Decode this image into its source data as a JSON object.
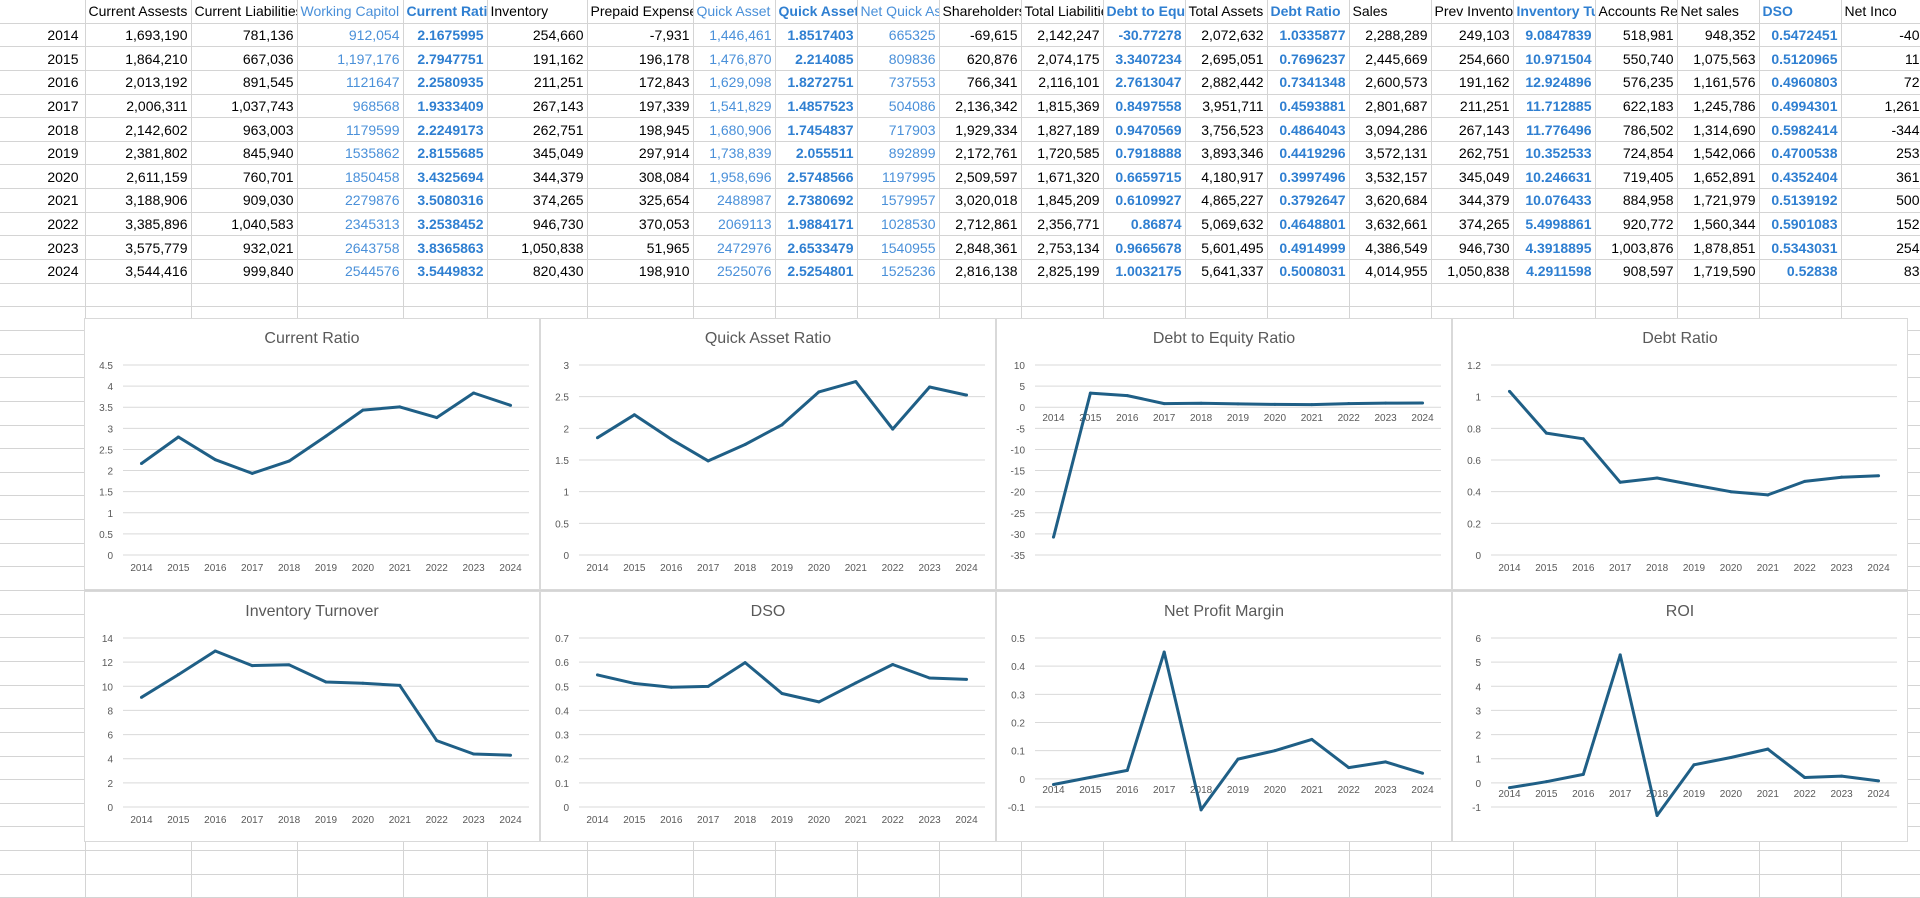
{
  "sheet": {
    "columns": [
      {
        "header": "Current Assests",
        "style": "normal"
      },
      {
        "header": "Current Liabilities",
        "style": "normal"
      },
      {
        "header": "Working Capitol",
        "style": "blue"
      },
      {
        "header": "Current Ratio",
        "style": "bold"
      },
      {
        "header": "Inventory",
        "style": "normal"
      },
      {
        "header": "Prepaid Expenses",
        "style": "normal"
      },
      {
        "header": "Quick Asset",
        "style": "blue"
      },
      {
        "header": "Quick Asset",
        "style": "bold"
      },
      {
        "header": "Net Quick As",
        "style": "blue"
      },
      {
        "header": "Shareholders",
        "style": "normal"
      },
      {
        "header": "Total Liabilitie",
        "style": "normal"
      },
      {
        "header": "Debt to Equi",
        "style": "bold"
      },
      {
        "header": "Total Assets",
        "style": "normal"
      },
      {
        "header": "Debt Ratio",
        "style": "bold"
      },
      {
        "header": "Sales",
        "style": "normal"
      },
      {
        "header": "Prev Inventor",
        "style": "normal"
      },
      {
        "header": "Inventory Tu",
        "style": "bold"
      },
      {
        "header": "Accounts Rec",
        "style": "normal"
      },
      {
        "header": "Net sales",
        "style": "normal"
      },
      {
        "header": "DSO",
        "style": "bold"
      },
      {
        "header": "Net Inco",
        "style": "normal"
      }
    ],
    "rows": [
      {
        "year": "2014",
        "cells": [
          "1,693,190",
          "781,136",
          "912,054",
          "2.1675995",
          "254,660",
          "-7,931",
          "1,446,461",
          "1.8517403",
          "665325",
          "-69,615",
          "2,142,247",
          "-30.77278",
          "2,072,632",
          "1.0335877",
          "2,288,289",
          "249,103",
          "9.0847839",
          "518,981",
          "948,352",
          "0.5472451",
          "-40"
        ]
      },
      {
        "year": "2015",
        "cells": [
          "1,864,210",
          "667,036",
          "1,197,176",
          "2.7947751",
          "191,162",
          "196,178",
          "1,476,870",
          "2.214085",
          "809836",
          "620,876",
          "2,074,175",
          "3.3407234",
          "2,695,051",
          "0.7696237",
          "2,445,669",
          "254,660",
          "10.971504",
          "550,740",
          "1,075,563",
          "0.5120965",
          "11"
        ]
      },
      {
        "year": "2016",
        "cells": [
          "2,013,192",
          "891,545",
          "1121647",
          "2.2580935",
          "211,251",
          "172,843",
          "1,629,098",
          "1.8272751",
          "737553",
          "766,341",
          "2,116,101",
          "2.7613047",
          "2,882,442",
          "0.7341348",
          "2,600,573",
          "191,162",
          "12.924896",
          "576,235",
          "1,161,576",
          "0.4960803",
          "72"
        ]
      },
      {
        "year": "2017",
        "cells": [
          "2,006,311",
          "1,037,743",
          "968568",
          "1.9333409",
          "267,143",
          "197,339",
          "1,541,829",
          "1.4857523",
          "504086",
          "2,136,342",
          "1,815,369",
          "0.8497558",
          "3,951,711",
          "0.4593881",
          "2,801,687",
          "211,251",
          "11.712885",
          "622,183",
          "1,245,786",
          "0.4994301",
          "1,261"
        ]
      },
      {
        "year": "2018",
        "cells": [
          "2,142,602",
          "963,003",
          "1179599",
          "2.2249173",
          "262,751",
          "198,945",
          "1,680,906",
          "1.7454837",
          "717903",
          "1,929,334",
          "1,827,189",
          "0.9470569",
          "3,756,523",
          "0.4864043",
          "3,094,286",
          "267,143",
          "11.776496",
          "786,502",
          "1,314,690",
          "0.5982414",
          "-344"
        ]
      },
      {
        "year": "2019",
        "cells": [
          "2,381,802",
          "845,940",
          "1535862",
          "2.8155685",
          "345,049",
          "297,914",
          "1,738,839",
          "2.055511",
          "892899",
          "2,172,761",
          "1,720,585",
          "0.7918888",
          "3,893,346",
          "0.4419296",
          "3,572,131",
          "262,751",
          "10.352533",
          "724,854",
          "1,542,066",
          "0.4700538",
          "253"
        ]
      },
      {
        "year": "2020",
        "cells": [
          "2,611,159",
          "760,701",
          "1850458",
          "3.4325694",
          "344,379",
          "308,084",
          "1,958,696",
          "2.5748566",
          "1197995",
          "2,509,597",
          "1,671,320",
          "0.6659715",
          "4,180,917",
          "0.3997496",
          "3,532,157",
          "345,049",
          "10.246631",
          "719,405",
          "1,652,891",
          "0.4352404",
          "361"
        ]
      },
      {
        "year": "2021",
        "cells": [
          "3,188,906",
          "909,030",
          "2279876",
          "3.5080316",
          "374,265",
          "325,654",
          "2488987",
          "2.7380692",
          "1579957",
          "3,020,018",
          "1,845,209",
          "0.6109927",
          "4,865,227",
          "0.3792647",
          "3,620,684",
          "344,379",
          "10.076433",
          "884,958",
          "1,721,979",
          "0.5139192",
          "500"
        ]
      },
      {
        "year": "2022",
        "cells": [
          "3,385,896",
          "1,040,583",
          "2345313",
          "3.2538452",
          "946,730",
          "370,053",
          "2069113",
          "1.9884171",
          "1028530",
          "2,712,861",
          "2,356,771",
          "0.86874",
          "5,069,632",
          "0.4648801",
          "3,632,661",
          "374,265",
          "5.4998861",
          "920,772",
          "1,560,344",
          "0.5901083",
          "152"
        ]
      },
      {
        "year": "2023",
        "cells": [
          "3,575,779",
          "932,021",
          "2643758",
          "3.8365863",
          "1,050,838",
          "51,965",
          "2472976",
          "2.6533479",
          "1540955",
          "2,848,361",
          "2,753,134",
          "0.9665678",
          "5,601,495",
          "0.4914999",
          "4,386,549",
          "946,730",
          "4.3918895",
          "1,003,876",
          "1,878,851",
          "0.5343031",
          "254"
        ]
      },
      {
        "year": "2024",
        "cells": [
          "3,544,416",
          "999,840",
          "2544576",
          "3.5449832",
          "820,430",
          "198,910",
          "2525076",
          "2.5254801",
          "1525236",
          "2,816,138",
          "2,825,199",
          "1.0032175",
          "5,641,337",
          "0.5008031",
          "4,014,955",
          "1,050,838",
          "4.2911598",
          "908,597",
          "1,719,590",
          "0.52838",
          "83"
        ]
      }
    ]
  },
  "chart_data": [
    {
      "type": "line",
      "title": "Current Ratio",
      "xlabel": "",
      "ylabel": "",
      "categories": [
        "2014",
        "2015",
        "2016",
        "2017",
        "2018",
        "2019",
        "2020",
        "2021",
        "2022",
        "2023",
        "2024"
      ],
      "values": [
        2.1675995,
        2.7947751,
        2.2580935,
        1.9333409,
        2.2249173,
        2.8155685,
        3.4325694,
        3.5080316,
        3.2538452,
        3.8365863,
        3.5449832
      ],
      "ylim": [
        0,
        4.5
      ],
      "yticks": [
        "4.5",
        "4",
        "3.5",
        "3",
        "2.5",
        "2",
        "1.5",
        "1",
        "0.5",
        "0"
      ],
      "grid": true,
      "color": "#1f5f86"
    },
    {
      "type": "line",
      "title": "Quick Asset Ratio",
      "xlabel": "",
      "ylabel": "",
      "categories": [
        "2014",
        "2015",
        "2016",
        "2017",
        "2018",
        "2019",
        "2020",
        "2021",
        "2022",
        "2023",
        "2024"
      ],
      "values": [
        1.8517403,
        2.214085,
        1.8272751,
        1.4857523,
        1.7454837,
        2.055511,
        2.5748566,
        2.7380692,
        1.9884171,
        2.6533479,
        2.5254801
      ],
      "ylim": [
        0,
        3
      ],
      "yticks": [
        "3",
        "2.5",
        "2",
        "1.5",
        "1",
        "0.5",
        "0"
      ],
      "grid": true,
      "color": "#1f5f86"
    },
    {
      "type": "line",
      "title": "Debt to Equity Ratio",
      "xlabel": "",
      "ylabel": "",
      "categories": [
        "2014",
        "2015",
        "2016",
        "2017",
        "2018",
        "2019",
        "2020",
        "2021",
        "2022",
        "2023",
        "2024"
      ],
      "values": [
        -30.77278,
        3.3407234,
        2.7613047,
        0.8497558,
        0.9470569,
        0.7918888,
        0.6659715,
        0.6109927,
        0.86874,
        0.9665678,
        1.0032175
      ],
      "ylim": [
        -35,
        10
      ],
      "yticks": [
        "10",
        "5",
        "0",
        "-5",
        "-10",
        "-15",
        "-20",
        "-25",
        "-30",
        "-35"
      ],
      "grid": true,
      "color": "#1f5f86"
    },
    {
      "type": "line",
      "title": "Debt Ratio",
      "xlabel": "",
      "ylabel": "",
      "categories": [
        "2014",
        "2015",
        "2016",
        "2017",
        "2018",
        "2019",
        "2020",
        "2021",
        "2022",
        "2023",
        "2024"
      ],
      "values": [
        1.0335877,
        0.7696237,
        0.7341348,
        0.4593881,
        0.4864043,
        0.4419296,
        0.3997496,
        0.3792647,
        0.4648801,
        0.4914999,
        0.5008031
      ],
      "ylim": [
        0,
        1.2
      ],
      "yticks": [
        "1.2",
        "1",
        "0.8",
        "0.6",
        "0.4",
        "0.2",
        "0"
      ],
      "grid": true,
      "color": "#1f5f86"
    },
    {
      "type": "line",
      "title": "Inventory Turnover",
      "xlabel": "",
      "ylabel": "",
      "categories": [
        "2014",
        "2015",
        "2016",
        "2017",
        "2018",
        "2019",
        "2020",
        "2021",
        "2022",
        "2023",
        "2024"
      ],
      "values": [
        9.0847839,
        10.971504,
        12.924896,
        11.712885,
        11.776496,
        10.352533,
        10.246631,
        10.076433,
        5.4998861,
        4.3918895,
        4.2911598
      ],
      "ylim": [
        0,
        14
      ],
      "yticks": [
        "14",
        "12",
        "10",
        "8",
        "6",
        "4",
        "2",
        "0"
      ],
      "grid": true,
      "color": "#1f5f86"
    },
    {
      "type": "line",
      "title": "DSO",
      "xlabel": "",
      "ylabel": "",
      "categories": [
        "2014",
        "2015",
        "2016",
        "2017",
        "2018",
        "2019",
        "2020",
        "2021",
        "2022",
        "2023",
        "2024"
      ],
      "values": [
        0.5472451,
        0.5120965,
        0.4960803,
        0.4994301,
        0.5982414,
        0.4700538,
        0.4352404,
        0.5139192,
        0.5901083,
        0.5343031,
        0.52838
      ],
      "ylim": [
        0,
        0.7
      ],
      "yticks": [
        "0.7",
        "0.6",
        "0.5",
        "0.4",
        "0.3",
        "0.2",
        "0.1",
        "0"
      ],
      "grid": true,
      "color": "#1f5f86"
    },
    {
      "type": "line",
      "title": "Net Profit Margin",
      "xlabel": "",
      "ylabel": "",
      "categories": [
        "2014",
        "2015",
        "2016",
        "2017",
        "2018",
        "2019",
        "2020",
        "2021",
        "2022",
        "2023",
        "2024"
      ],
      "values": [
        -0.02,
        0.005,
        0.03,
        0.45,
        -0.11,
        0.07,
        0.1,
        0.14,
        0.04,
        0.06,
        0.02
      ],
      "ylim": [
        -0.1,
        0.5
      ],
      "yticks": [
        "0.5",
        "0.4",
        "0.3",
        "0.2",
        "0.1",
        "0",
        "-0.1"
      ],
      "grid": true,
      "color": "#1f5f86"
    },
    {
      "type": "line",
      "title": "ROI",
      "xlabel": "",
      "ylabel": "",
      "categories": [
        "2014",
        "2015",
        "2016",
        "2017",
        "2018",
        "2019",
        "2020",
        "2021",
        "2022",
        "2023",
        "2024"
      ],
      "values": [
        -0.2,
        0.05,
        0.35,
        5.3,
        -1.35,
        0.75,
        1.05,
        1.4,
        0.22,
        0.28,
        0.08
      ],
      "ylim": [
        -1,
        6
      ],
      "yticks": [
        "6",
        "5",
        "4",
        "3",
        "2",
        "1",
        "0",
        "-1"
      ],
      "grid": true,
      "color": "#1f5f86"
    }
  ]
}
